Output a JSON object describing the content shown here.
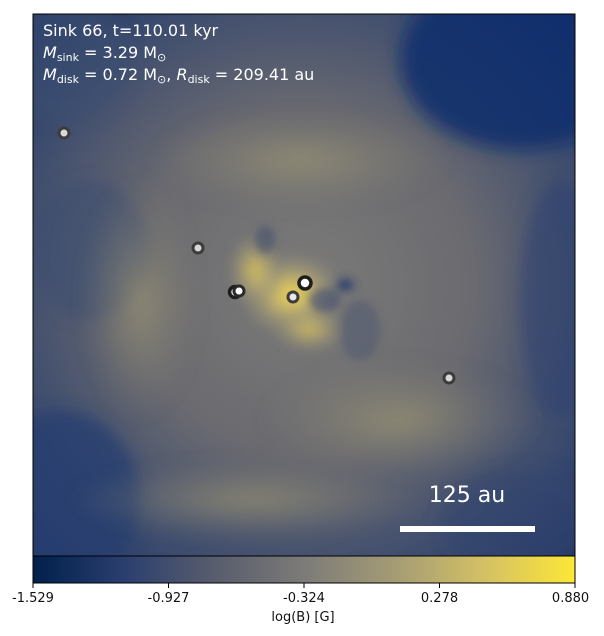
{
  "title": {
    "line1": "Sink 66, t=110.01 kyr",
    "m_sink_symbol": "M",
    "m_sink_sub": "sink",
    "m_sink_rest": " = 3.29 M",
    "m_sink_sun": "⊙",
    "m_disk_symbol": "M",
    "m_disk_sub": "disk",
    "m_disk_rest": " = 0.72 M",
    "m_disk_sun": "⊙",
    "r_disk_sep": ", ",
    "r_disk_symbol": "R",
    "r_disk_sub": "disk",
    "r_disk_rest": " = 209.41 au"
  },
  "scale_bar": {
    "label": "125 au"
  },
  "colorbar": {
    "label": "log(B) [G]",
    "ticks": [
      "-1.529",
      "-0.927",
      "-0.324",
      "0.278",
      "0.880"
    ],
    "range": [
      -1.529,
      0.88
    ],
    "colormap": "cividis",
    "colors": [
      "#00204c",
      "#2b3f6f",
      "#575c6d",
      "#7c7b78",
      "#a59c74",
      "#d3c065",
      "#fde737"
    ]
  },
  "sinks": {
    "marker_fill": "#ffffff",
    "marker_edge": "#3c3c3c",
    "count": 7
  }
}
